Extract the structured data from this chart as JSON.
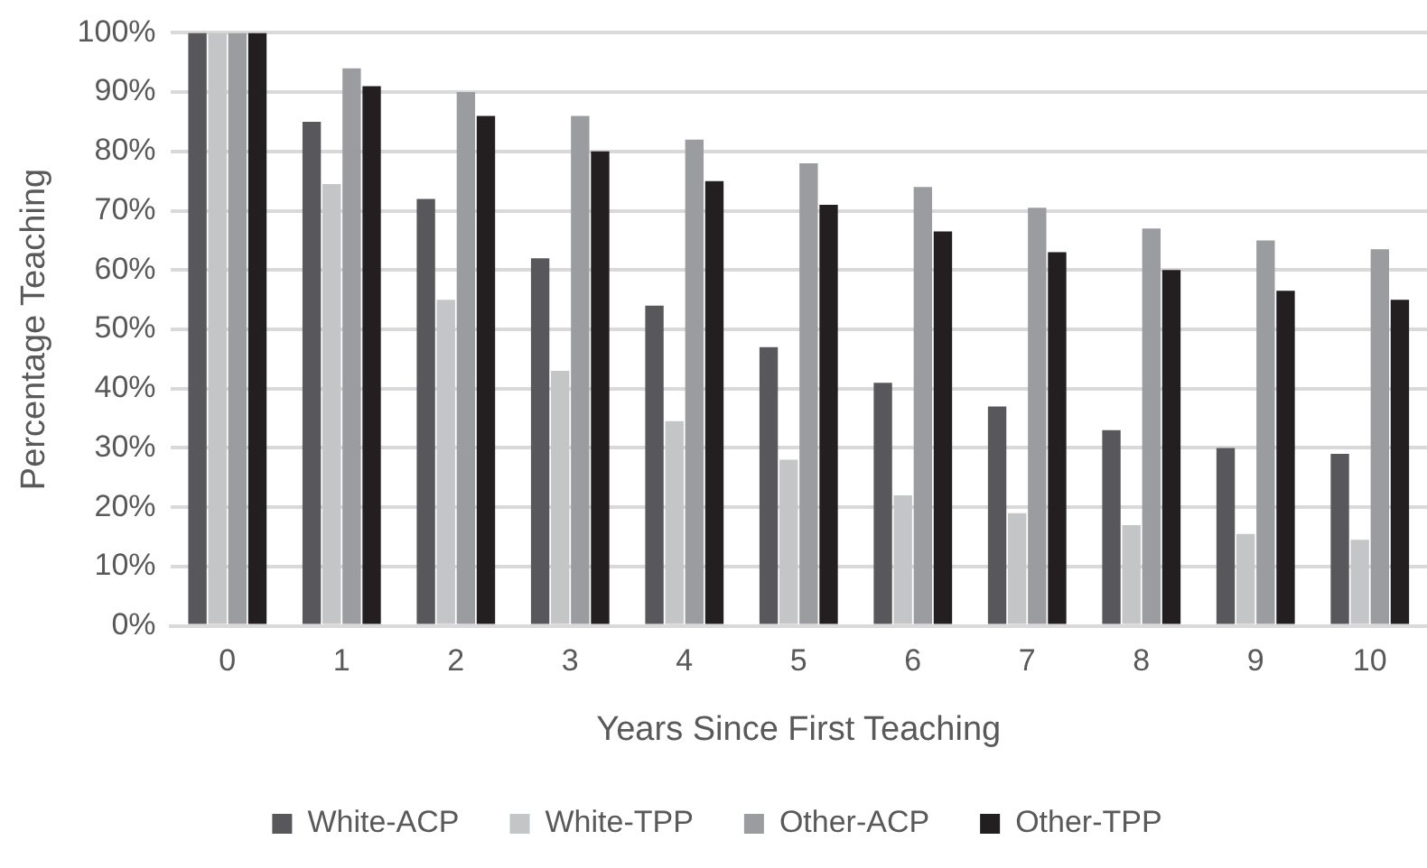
{
  "chart_data": {
    "type": "bar",
    "xlabel": "Years Since First Teaching",
    "ylabel": "Percentage Teaching",
    "categories": [
      "0",
      "1",
      "2",
      "3",
      "4",
      "5",
      "6",
      "7",
      "8",
      "9",
      "10"
    ],
    "series": [
      {
        "name": "White-ACP",
        "color": "#58575b",
        "values": [
          100,
          85,
          72,
          62,
          54,
          47,
          41,
          37,
          33,
          30,
          29
        ]
      },
      {
        "name": "White-TPP",
        "color": "#c4c5c7",
        "values": [
          100,
          74.5,
          55,
          43,
          34.5,
          28,
          22,
          19,
          17,
          15.5,
          14.5
        ]
      },
      {
        "name": "Other-ACP",
        "color": "#9a9c9f",
        "values": [
          100,
          94,
          90,
          86,
          82,
          78,
          74,
          70.5,
          67,
          65,
          63.5
        ]
      },
      {
        "name": "Other-TPP",
        "color": "#231f20",
        "values": [
          100,
          91,
          86,
          80,
          75,
          71,
          66.5,
          63,
          60,
          56.5,
          55
        ]
      }
    ],
    "ylim": [
      0,
      100
    ],
    "yticks": [
      {
        "value": 0,
        "label": "0%"
      },
      {
        "value": 10,
        "label": "10%"
      },
      {
        "value": 20,
        "label": "20%"
      },
      {
        "value": 30,
        "label": "30%"
      },
      {
        "value": 40,
        "label": "40%"
      },
      {
        "value": 50,
        "label": "50%"
      },
      {
        "value": 60,
        "label": "60%"
      },
      {
        "value": 70,
        "label": "70%"
      },
      {
        "value": 80,
        "label": "80%"
      },
      {
        "value": 90,
        "label": "90%"
      },
      {
        "value": 100,
        "label": "100%"
      }
    ],
    "grid": "y",
    "legend": "bottom"
  }
}
